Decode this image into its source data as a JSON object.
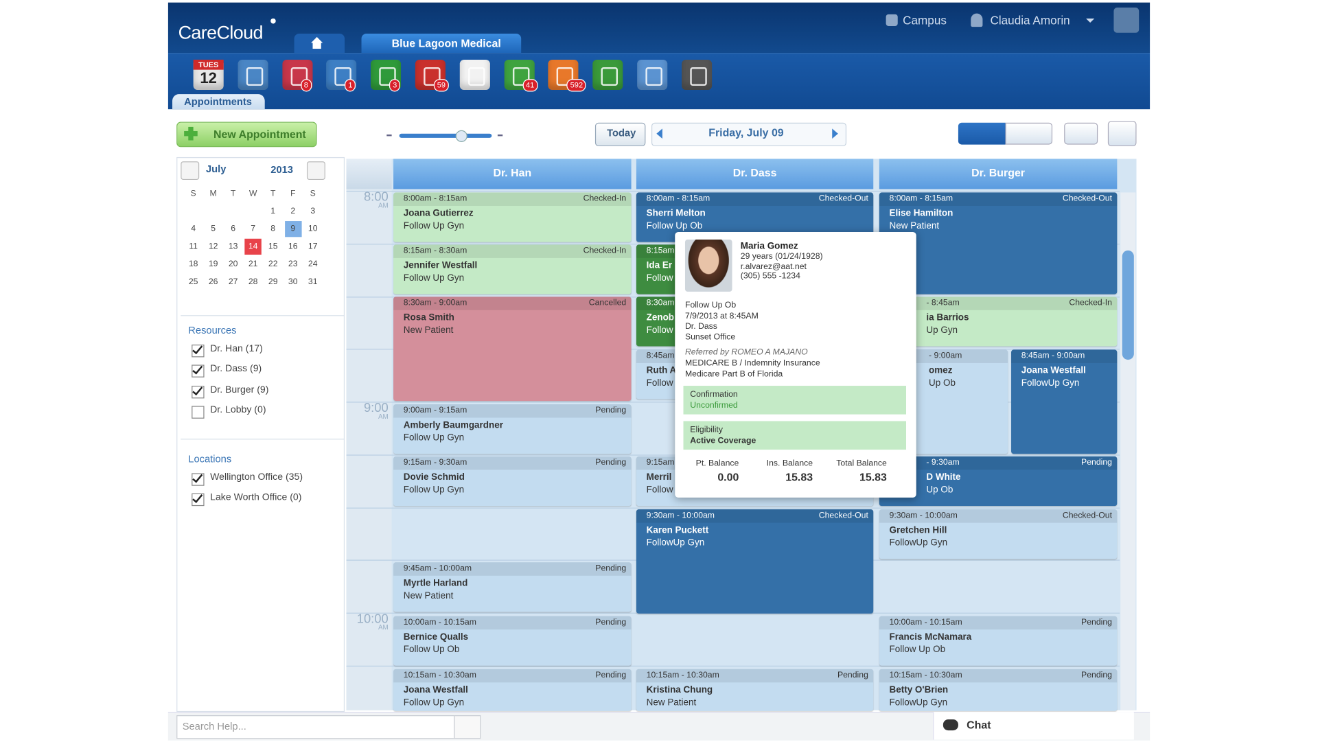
{
  "header": {
    "logo": "CareCloud",
    "practice": "Blue Lagoon Medical",
    "campus": "Campus",
    "user": "Claudia Amorin"
  },
  "toolbar": {
    "date_day": "TUES",
    "date_num": "12",
    "tab": "Appointments",
    "icons": [
      {
        "color": "#e8e8e8"
      },
      {
        "color": "#4a86c5"
      },
      {
        "color": "#c8364a",
        "badge": "8"
      },
      {
        "color": "#3d7fc4",
        "badge": "1"
      },
      {
        "color": "#2f9a3a",
        "badge": "3"
      },
      {
        "color": "#c9302c",
        "badge": "59"
      },
      {
        "color": "#f2f2f2"
      },
      {
        "color": "#3fa33f",
        "badge": "41"
      },
      {
        "color": "#e8782a",
        "badge": "592"
      },
      {
        "color": "#3a9a3a"
      },
      {
        "color": "#5b93d1"
      },
      {
        "color": "#555555"
      }
    ]
  },
  "actions": {
    "new": "New Appointment",
    "today": "Today",
    "date": "Friday, July 09"
  },
  "mini_calendar": {
    "month": "July",
    "year": "2013",
    "weekdays": [
      "S",
      "M",
      "T",
      "W",
      "T",
      "F",
      "S"
    ],
    "weeks": [
      [
        null,
        null,
        null,
        null,
        1,
        2,
        3
      ],
      [
        4,
        5,
        6,
        7,
        8,
        9,
        10
      ],
      [
        11,
        12,
        13,
        14,
        15,
        16,
        17
      ],
      [
        18,
        19,
        20,
        21,
        22,
        23,
        24
      ],
      [
        25,
        26,
        27,
        28,
        29,
        30,
        31
      ]
    ],
    "selected": 9,
    "today": 14
  },
  "resources": {
    "title": "Resources",
    "items": [
      {
        "label": "Dr. Han (17)",
        "checked": true
      },
      {
        "label": "Dr. Dass (9)",
        "checked": true
      },
      {
        "label": "Dr. Burger (9)",
        "checked": true
      },
      {
        "label": "Dr. Lobby (0)",
        "checked": false
      }
    ]
  },
  "locations": {
    "title": "Locations",
    "items": [
      {
        "label": "Wellington Office (35)",
        "checked": true
      },
      {
        "label": "Lake Worth Office (0)",
        "checked": true
      }
    ]
  },
  "times": [
    {
      "time": "8:00",
      "period": "AM"
    },
    {
      "time": "9:00",
      "period": "AM"
    },
    {
      "time": "10:00",
      "period": "AM"
    }
  ],
  "columns": [
    {
      "name": "Dr. Han",
      "appointments": [
        {
          "time": "8:00am - 8:15am",
          "status": "Checked-In",
          "patient": "Joana Gutierrez",
          "type": "Follow Up Gyn",
          "color": "#c4eac6"
        },
        {
          "time": "8:15am - 8:30am",
          "status": "Checked-In",
          "patient": "Jennifer Westfall",
          "type": "Follow Up Gyn",
          "color": "#c4eac6"
        },
        {
          "time": "8:30am - 9:00am",
          "status": "Cancelled",
          "patient": "Rosa Smith",
          "type": "New Patient",
          "color": "#d48f9b"
        },
        {
          "time": "9:00am - 9:15am",
          "status": "Pending",
          "patient": "Amberly Baumgardner",
          "type": "Follow Up Gyn",
          "color": "#c3dcf0"
        },
        {
          "time": "9:15am - 9:30am",
          "status": "Pending",
          "patient": "Dovie Schmid",
          "type": "Follow Up Gyn",
          "color": "#c3dcf0"
        },
        {
          "time": "9:45am - 10:00am",
          "status": "Pending",
          "patient": "Myrtle Harland",
          "type": "New Patient",
          "color": "#c3dcf0"
        },
        {
          "time": "10:00am - 10:15am",
          "status": "Pending",
          "patient": "Bernice Qualls",
          "type": "Follow Up Ob",
          "color": "#c3dcf0"
        },
        {
          "time": "10:15am - 10:30am",
          "status": "Pending",
          "patient": "Joana Westfall",
          "type": "Follow Up Gyn",
          "color": "#c3dcf0"
        }
      ]
    },
    {
      "name": "Dr. Dass",
      "appointments": [
        {
          "time": "8:00am - 8:15am",
          "status": "Checked-Out",
          "patient": "Sherri Melton",
          "type": "Follow Up Ob",
          "color": "#3470a8"
        },
        {
          "time": "8:15am",
          "patient": "Ida Er",
          "type": "Follow",
          "color": "#3e8c40"
        },
        {
          "time": "8:30am",
          "patient": "Zenob",
          "type": "Follow",
          "color": "#3e8c40"
        },
        {
          "time": "8:45am",
          "patient": "Ruth A",
          "type": "Follow",
          "color": "#c3dcf0"
        },
        {
          "time": "9:15am",
          "patient": "Merril",
          "type": "Follow",
          "color": "#c3dcf0"
        },
        {
          "time": "9:30am - 10:00am",
          "status": "Checked-Out",
          "patient": "Karen Puckett",
          "type": "FollowUp Gyn",
          "color": "#3470a8"
        },
        {
          "time": "10:15am - 10:30am",
          "status": "Pending",
          "patient": "Kristina Chung",
          "type": "New Patient",
          "color": "#c3dcf0"
        }
      ]
    },
    {
      "name": "Dr. Burger",
      "appointments": [
        {
          "time": "8:00am - 8:15am",
          "status": "Checked-Out",
          "patient": "Elise Hamilton",
          "type": "New Patient",
          "color": "#3470a8"
        },
        {
          "time": "- 8:45am",
          "status": "Checked-In",
          "patient": "ia Barrios",
          "type": "Up Gyn",
          "color": "#c4eac6"
        },
        {
          "time": "- 9:00am",
          "patient": "omez",
          "type": "Up Ob",
          "color": "#c3dcf0"
        },
        {
          "time": "8:45am - 9:00am",
          "patient": "Joana Westfall",
          "type": "FollowUp Gyn",
          "color": "#3470a8"
        },
        {
          "time": "- 9:30am",
          "status": "Pending",
          "patient": "D White",
          "type": "Up Ob",
          "color": "#3470a8"
        },
        {
          "time": "9:30am - 10:00am",
          "status": "Checked-Out",
          "patient": "Gretchen Hill",
          "type": "FollowUp Gyn",
          "color": "#c3dcf0"
        },
        {
          "time": "10:00am - 10:15am",
          "status": "Pending",
          "patient": "Francis McNamara",
          "type": "Follow Up Ob",
          "color": "#c3dcf0"
        },
        {
          "time": "10:15am - 10:30am",
          "status": "Pending",
          "patient": "Betty O'Brien",
          "type": "FollowUp Gyn",
          "color": "#c3dcf0"
        }
      ]
    }
  ],
  "popup": {
    "name": "Maria Gomez",
    "age": "29 years (01/24/1928)",
    "email": "r.alvarez@aat.net",
    "phone": "(305) 555 -1234",
    "visit": [
      "Follow Up Ob",
      "7/9/2013 at 8:45AM",
      "Dr. Dass",
      "Sunset Office"
    ],
    "referral": "Referred by ROMEO A MAJANO",
    "insurance": [
      "MEDICARE B / Indemnity Insurance",
      "Medicare Part B of Florida"
    ],
    "confirmation_label": "Confirmation",
    "confirmation": "Unconfirmed",
    "eligibility_label": "Eligibility",
    "eligibility": "Active Coverage",
    "balances": [
      {
        "label": "Pt. Balance",
        "value": "0.00"
      },
      {
        "label": "Ins. Balance",
        "value": "15.83"
      },
      {
        "label": "Total Balance",
        "value": "15.83"
      }
    ]
  },
  "footer": {
    "search": "Search Help...",
    "chat": "Chat"
  }
}
